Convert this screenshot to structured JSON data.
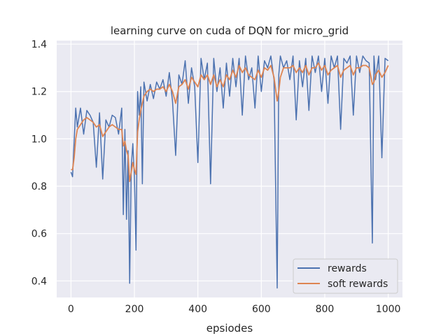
{
  "chart_data": {
    "type": "line",
    "title": "learning curve on cuda of DQN for micro_grid",
    "xlabel": "epsiodes",
    "ylabel": "",
    "xlim": [
      -45,
      1045
    ],
    "ylim": [
      0.33,
      1.415
    ],
    "xticks": [
      0,
      200,
      400,
      600,
      800,
      1000
    ],
    "yticks": [
      0.4,
      0.6,
      0.8,
      1.0,
      1.2,
      1.4
    ],
    "xtick_labels": [
      "0",
      "200",
      "400",
      "600",
      "800",
      "1000"
    ],
    "ytick_labels": [
      "0.4",
      "0.6",
      "0.8",
      "1.0",
      "1.2",
      "1.4"
    ],
    "grid": true,
    "legend_position": "lower-right",
    "background": "#eaeaf2",
    "series": [
      {
        "name": "rewards",
        "color": "#4c72b0",
        "x": [
          0,
          5,
          10,
          15,
          20,
          30,
          40,
          50,
          60,
          70,
          80,
          90,
          100,
          110,
          120,
          130,
          140,
          150,
          160,
          165,
          170,
          175,
          180,
          185,
          190,
          195,
          200,
          205,
          210,
          215,
          220,
          225,
          230,
          240,
          250,
          260,
          270,
          280,
          290,
          300,
          310,
          320,
          330,
          340,
          350,
          360,
          370,
          380,
          390,
          400,
          410,
          420,
          430,
          440,
          450,
          460,
          470,
          480,
          490,
          500,
          510,
          520,
          530,
          540,
          550,
          560,
          570,
          580,
          590,
          600,
          610,
          620,
          630,
          640,
          650,
          655,
          660,
          670,
          680,
          690,
          700,
          710,
          720,
          730,
          740,
          750,
          760,
          770,
          780,
          790,
          800,
          810,
          820,
          830,
          840,
          850,
          860,
          870,
          880,
          890,
          900,
          910,
          920,
          930,
          940,
          950,
          955,
          960,
          970,
          980,
          990,
          1000
        ],
        "values": [
          0.86,
          0.84,
          0.99,
          1.13,
          1.05,
          1.13,
          1.02,
          1.12,
          1.1,
          1.07,
          0.88,
          1.11,
          0.83,
          1.08,
          1.05,
          1.1,
          1.09,
          1.02,
          1.13,
          0.68,
          1.04,
          0.66,
          0.95,
          0.39,
          0.88,
          0.98,
          0.84,
          0.53,
          1.2,
          1.1,
          1.22,
          0.81,
          1.24,
          1.16,
          1.23,
          1.17,
          1.24,
          1.21,
          1.25,
          1.18,
          1.28,
          1.16,
          0.93,
          1.27,
          1.23,
          1.33,
          1.15,
          1.3,
          1.22,
          0.9,
          1.34,
          1.25,
          1.32,
          0.81,
          1.34,
          1.2,
          1.3,
          1.13,
          1.32,
          1.18,
          1.34,
          1.22,
          1.34,
          1.1,
          1.35,
          1.25,
          1.3,
          1.13,
          1.35,
          1.2,
          1.33,
          1.3,
          1.35,
          1.25,
          0.37,
          1.27,
          1.35,
          1.3,
          1.33,
          1.25,
          1.35,
          1.08,
          1.33,
          1.22,
          1.34,
          1.12,
          1.35,
          1.28,
          1.35,
          1.2,
          1.34,
          1.15,
          1.35,
          1.3,
          1.35,
          1.04,
          1.34,
          1.32,
          1.35,
          1.1,
          1.35,
          1.28,
          1.35,
          1.33,
          1.32,
          0.56,
          1.35,
          1.25,
          1.35,
          0.92,
          1.34,
          1.33
        ]
      },
      {
        "name": "soft rewards",
        "color": "#dd8452",
        "x": [
          0,
          5,
          10,
          15,
          20,
          30,
          40,
          50,
          60,
          70,
          80,
          90,
          100,
          110,
          120,
          130,
          140,
          150,
          160,
          165,
          170,
          175,
          180,
          185,
          190,
          195,
          200,
          205,
          210,
          215,
          220,
          225,
          230,
          240,
          250,
          260,
          270,
          280,
          290,
          300,
          310,
          320,
          330,
          340,
          350,
          360,
          370,
          380,
          390,
          400,
          410,
          420,
          430,
          440,
          450,
          460,
          470,
          480,
          490,
          500,
          510,
          520,
          530,
          540,
          550,
          560,
          570,
          580,
          590,
          600,
          610,
          620,
          630,
          640,
          650,
          655,
          660,
          670,
          680,
          690,
          700,
          710,
          720,
          730,
          740,
          750,
          760,
          770,
          780,
          790,
          800,
          810,
          820,
          830,
          840,
          850,
          860,
          870,
          880,
          890,
          900,
          910,
          920,
          930,
          940,
          950,
          955,
          960,
          970,
          980,
          990,
          1000
        ],
        "values": [
          0.87,
          0.87,
          0.92,
          1.0,
          1.04,
          1.06,
          1.08,
          1.09,
          1.08,
          1.07,
          1.05,
          1.06,
          1.01,
          1.03,
          1.05,
          1.06,
          1.05,
          1.04,
          1.04,
          0.97,
          0.99,
          0.95,
          0.93,
          0.82,
          0.86,
          0.9,
          0.87,
          0.85,
          1.03,
          1.08,
          1.12,
          1.15,
          1.18,
          1.2,
          1.21,
          1.2,
          1.21,
          1.21,
          1.22,
          1.2,
          1.23,
          1.2,
          1.15,
          1.22,
          1.23,
          1.25,
          1.21,
          1.26,
          1.24,
          1.22,
          1.27,
          1.25,
          1.27,
          1.23,
          1.27,
          1.22,
          1.25,
          1.22,
          1.27,
          1.25,
          1.29,
          1.26,
          1.31,
          1.28,
          1.3,
          1.27,
          1.26,
          1.25,
          1.29,
          1.26,
          1.3,
          1.29,
          1.31,
          1.26,
          1.16,
          1.2,
          1.26,
          1.3,
          1.3,
          1.3,
          1.31,
          1.28,
          1.3,
          1.28,
          1.31,
          1.27,
          1.3,
          1.3,
          1.32,
          1.29,
          1.31,
          1.27,
          1.29,
          1.3,
          1.31,
          1.26,
          1.29,
          1.3,
          1.31,
          1.27,
          1.3,
          1.3,
          1.31,
          1.31,
          1.3,
          1.23,
          1.24,
          1.27,
          1.29,
          1.26,
          1.28,
          1.31
        ]
      }
    ]
  }
}
